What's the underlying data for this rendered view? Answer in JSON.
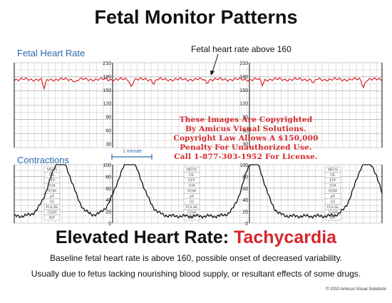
{
  "title": "Fetal Monitor Patterns",
  "fhr_label": "Fetal Heart Rate",
  "annotation": "Fetal heart rate above 160",
  "contractions_label": "Contractions",
  "minute_label": "1 minute",
  "fhr_ticks": [
    "210",
    "180",
    "150",
    "120",
    "90",
    "60",
    "30"
  ],
  "uc_ticks": [
    "100",
    "80",
    "60",
    "40",
    "20",
    "0"
  ],
  "side_labels": [
    "MEDS",
    "DIL",
    "EFF",
    "STA",
    "ROM",
    "pH",
    "O2",
    "PULSE",
    "TEMP",
    "B/P"
  ],
  "heading_prefix": "Elevated Heart Rate: ",
  "heading_highlight": "Tachycardia",
  "sentence1": "Baseline fetal heart rate is above 160, possible onset of decreased variability.",
  "sentence2": "Usually due to fetus lacking nourishing blood supply, or resultant effects of some drugs.",
  "copyright": "© 2010 Amicus Visual Solutions",
  "watermark": [
    "These Images Are Copyrighted",
    "By Amicus Visual Solutions.",
    "Copyright Law Allows A $150,000",
    "Penalty For Unauthorized Use.",
    "Call 1-877-303-1952 For License."
  ],
  "colors": {
    "fhr_trace": "#d6262b",
    "accent_red": "#d6262b",
    "label_blue": "#2a6aa8"
  }
}
